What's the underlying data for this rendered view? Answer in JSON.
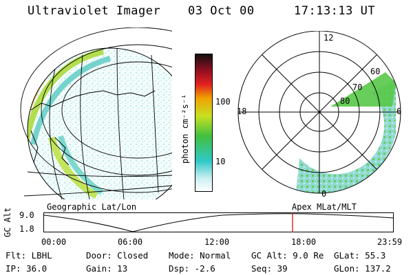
{
  "header": {
    "instrument": "Ultraviolet Imager",
    "date": "03 Oct 00",
    "time": "17:13:13 UT"
  },
  "colorbar": {
    "unit_label": "photon cm⁻²s⁻¹",
    "ticks": [
      "100",
      "10"
    ]
  },
  "polar_plot": {
    "lat_labels": [
      "80",
      "70",
      "60"
    ],
    "mlt_labels": [
      "12",
      "18",
      "6",
      "0"
    ]
  },
  "panel_labels": {
    "left": "Geographic Lat/Lon",
    "right": "Apex MLat/MLT"
  },
  "altitude_plot": {
    "y_label": "GC Alt",
    "y_ticks": [
      "9.0",
      "1.8"
    ],
    "x_ticks": [
      "00:00",
      "06:00",
      "12:00",
      "18:00",
      "23:59"
    ],
    "marker_color": "#cc0000"
  },
  "info": {
    "filter_label": "Flt:",
    "filter_value": "LBHL",
    "ip_label": "IP:",
    "ip_value": "36.0",
    "door_label": "Door:",
    "door_value": "Closed",
    "gain_label": "Gain:",
    "gain_value": "13",
    "mode_label": "Mode:",
    "mode_value": "Normal",
    "dsp_label": "Dsp:",
    "dsp_value": "-2.6",
    "gcalt_label": "GC Alt:",
    "gcalt_value": "9.0 Re",
    "seq_label": "Seq:",
    "seq_value": "39",
    "glat_label": "GLat:",
    "glat_value": "55.3",
    "glon_label": "GLon:",
    "glon_value": "137.2"
  }
}
